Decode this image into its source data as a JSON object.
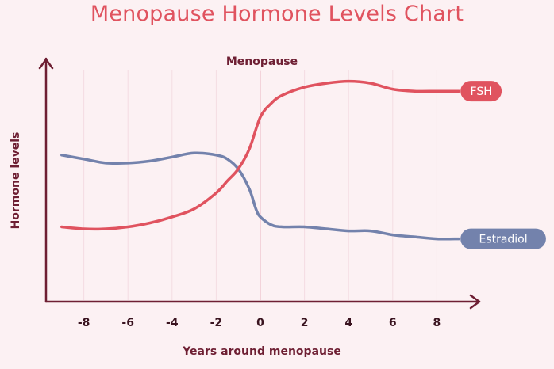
{
  "chart_data": {
    "type": "line",
    "title": "Menopause Hormone Levels Chart",
    "xlabel": "Years around menopause",
    "ylabel": "Hormone levels",
    "marker_label": "Menopause",
    "marker_x": 0,
    "xlim": [
      -9.5,
      9.5
    ],
    "ylim": [
      0,
      100
    ],
    "x_ticks": [
      -8,
      -6,
      -4,
      -2,
      0,
      2,
      4,
      6,
      8
    ],
    "x_tick_labels": [
      "-8",
      "-6",
      "-4",
      "-2",
      "0",
      "2",
      "4",
      "6",
      "8"
    ],
    "y_ticks_shown": false,
    "grid": "vertical",
    "legend": "inline-end-labels",
    "series": [
      {
        "name": "FSH",
        "color": "#e0535f",
        "x": [
          -9,
          -8,
          -7,
          -6,
          -5,
          -4,
          -3,
          -2,
          -1.5,
          -1,
          -0.5,
          0,
          0.5,
          1,
          2,
          3,
          4,
          5,
          6,
          7,
          8,
          9
        ],
        "y": [
          24,
          23,
          23,
          24,
          26,
          29,
          33,
          41,
          47,
          53,
          63,
          79,
          86,
          90,
          94,
          96,
          97,
          96,
          93,
          92,
          92,
          92
        ]
      },
      {
        "name": "Estradiol",
        "color": "#7382ac",
        "x": [
          -9,
          -8,
          -7,
          -6,
          -5,
          -4,
          -3,
          -2,
          -1.5,
          -1,
          -0.5,
          -0.2,
          0,
          0.5,
          1,
          2,
          3,
          4,
          5,
          6,
          7,
          8,
          9
        ],
        "y": [
          60,
          58,
          56,
          56,
          57,
          59,
          61,
          60,
          58,
          53,
          43,
          33,
          29,
          25,
          24,
          24,
          23,
          22,
          22,
          20,
          19,
          18,
          18
        ]
      }
    ]
  }
}
